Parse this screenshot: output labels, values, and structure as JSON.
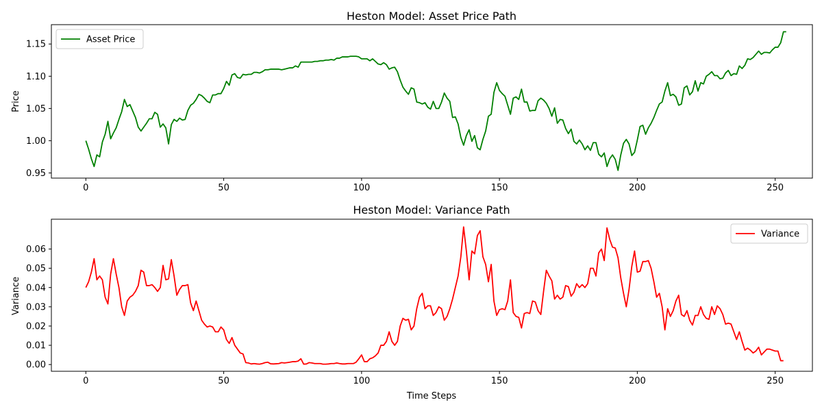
{
  "chart_data": [
    {
      "type": "line",
      "title": "Heston Model: Asset Price Path",
      "xlabel": "",
      "ylabel": "Price",
      "xlim": [
        -12.5,
        263.5
      ],
      "ylim": [
        0.942,
        1.18
      ],
      "xticks": [
        0,
        50,
        100,
        150,
        200,
        250
      ],
      "yticks": [
        0.95,
        1.0,
        1.05,
        1.1,
        1.15
      ],
      "ytick_labels": [
        "0.95",
        "1.00",
        "1.05",
        "1.10",
        "1.15"
      ],
      "legend": "top-left",
      "grid": false,
      "series": [
        {
          "name": "Asset Price",
          "color": "#008000",
          "x_start": 0,
          "x_step": 1,
          "values": [
            1.0,
            0.987,
            0.972,
            0.96,
            0.978,
            0.975,
            0.998,
            1.01,
            1.03,
            1.003,
            1.012,
            1.02,
            1.033,
            1.045,
            1.064,
            1.053,
            1.056,
            1.046,
            1.036,
            1.021,
            1.015,
            1.021,
            1.027,
            1.034,
            1.034,
            1.044,
            1.041,
            1.021,
            1.026,
            1.02,
            0.995,
            1.025,
            1.033,
            1.03,
            1.035,
            1.032,
            1.033,
            1.047,
            1.055,
            1.058,
            1.064,
            1.072,
            1.07,
            1.066,
            1.061,
            1.059,
            1.071,
            1.071,
            1.073,
            1.073,
            1.081,
            1.092,
            1.086,
            1.102,
            1.104,
            1.098,
            1.097,
            1.103,
            1.102,
            1.103,
            1.103,
            1.106,
            1.106,
            1.105,
            1.107,
            1.11,
            1.11,
            1.111,
            1.111,
            1.111,
            1.111,
            1.11,
            1.111,
            1.112,
            1.113,
            1.113,
            1.116,
            1.114,
            1.122,
            1.122,
            1.122,
            1.122,
            1.122,
            1.123,
            1.123,
            1.124,
            1.124,
            1.125,
            1.125,
            1.126,
            1.125,
            1.128,
            1.128,
            1.13,
            1.13,
            1.13,
            1.131,
            1.131,
            1.131,
            1.13,
            1.127,
            1.127,
            1.127,
            1.124,
            1.127,
            1.123,
            1.119,
            1.118,
            1.121,
            1.118,
            1.111,
            1.113,
            1.114,
            1.107,
            1.094,
            1.083,
            1.077,
            1.072,
            1.082,
            1.08,
            1.06,
            1.059,
            1.057,
            1.059,
            1.052,
            1.049,
            1.061,
            1.05,
            1.05,
            1.06,
            1.074,
            1.066,
            1.061,
            1.036,
            1.037,
            1.026,
            1.005,
            0.993,
            1.008,
            1.017,
            0.999,
            1.008,
            0.989,
            0.986,
            1.002,
            1.015,
            1.038,
            1.041,
            1.075,
            1.09,
            1.078,
            1.073,
            1.069,
            1.055,
            1.041,
            1.066,
            1.068,
            1.064,
            1.08,
            1.06,
            1.06,
            1.046,
            1.047,
            1.047,
            1.062,
            1.066,
            1.063,
            1.058,
            1.05,
            1.038,
            1.051,
            1.027,
            1.033,
            1.032,
            1.019,
            1.011,
            1.018,
            0.999,
            0.995,
            1.001,
            0.995,
            0.986,
            0.992,
            0.985,
            0.997,
            0.997,
            0.979,
            0.975,
            0.981,
            0.96,
            0.972,
            0.978,
            0.971,
            0.954,
            0.978,
            0.996,
            1.002,
            0.995,
            0.977,
            0.982,
            1.001,
            1.022,
            1.024,
            1.01,
            1.02,
            1.027,
            1.036,
            1.047,
            1.057,
            1.06,
            1.077,
            1.09,
            1.07,
            1.072,
            1.068,
            1.055,
            1.057,
            1.082,
            1.085,
            1.071,
            1.076,
            1.093,
            1.077,
            1.09,
            1.088,
            1.1,
            1.103,
            1.107,
            1.101,
            1.101,
            1.096,
            1.097,
            1.105,
            1.109,
            1.101,
            1.104,
            1.103,
            1.116,
            1.112,
            1.117,
            1.127,
            1.126,
            1.129,
            1.134,
            1.139,
            1.134,
            1.137,
            1.137,
            1.136,
            1.141,
            1.145,
            1.145,
            1.152,
            1.169,
            1.169
          ]
        }
      ]
    },
    {
      "type": "line",
      "title": "Heston Model: Variance Path",
      "xlabel": "Time Steps",
      "ylabel": "Variance",
      "xlim": [
        -12.5,
        263.5
      ],
      "ylim": [
        -0.0035,
        0.0755
      ],
      "xticks": [
        0,
        50,
        100,
        150,
        200,
        250
      ],
      "yticks": [
        0.0,
        0.01,
        0.02,
        0.03,
        0.04,
        0.05,
        0.06
      ],
      "ytick_labels": [
        "0.00",
        "0.01",
        "0.02",
        "0.03",
        "0.04",
        "0.05",
        "0.06"
      ],
      "legend": "top-right",
      "grid": false,
      "series": [
        {
          "name": "Variance",
          "color": "#ff0000",
          "x_start": 0,
          "x_step": 1,
          "values": [
            0.04,
            0.043,
            0.048,
            0.055,
            0.044,
            0.046,
            0.044,
            0.035,
            0.0315,
            0.047,
            0.055,
            0.047,
            0.04,
            0.03,
            0.0255,
            0.033,
            0.035,
            0.036,
            0.038,
            0.041,
            0.049,
            0.048,
            0.041,
            0.041,
            0.0415,
            0.04,
            0.038,
            0.04,
            0.0515,
            0.044,
            0.0445,
            0.0545,
            0.046,
            0.036,
            0.039,
            0.041,
            0.041,
            0.0415,
            0.032,
            0.028,
            0.033,
            0.028,
            0.023,
            0.021,
            0.0195,
            0.02,
            0.0195,
            0.017,
            0.017,
            0.0195,
            0.018,
            0.013,
            0.011,
            0.014,
            0.01,
            0.008,
            0.006,
            0.0055,
            0.001,
            0.0008,
            0.0003,
            0.0005,
            0.0003,
            0.0002,
            0.0005,
            0.001,
            0.0012,
            0.0004,
            0.0003,
            0.0004,
            0.0005,
            0.001,
            0.0008,
            0.001,
            0.0012,
            0.0015,
            0.0015,
            0.0018,
            0.003,
            0.0002,
            0.0003,
            0.001,
            0.0008,
            0.0005,
            0.0005,
            0.0005,
            0.0002,
            0.0002,
            0.0003,
            0.0005,
            0.0005,
            0.0008,
            0.0005,
            0.0003,
            0.0003,
            0.0005,
            0.0005,
            0.0005,
            0.0012,
            0.003,
            0.005,
            0.0015,
            0.0015,
            0.003,
            0.0035,
            0.0045,
            0.006,
            0.01,
            0.01,
            0.012,
            0.017,
            0.012,
            0.01,
            0.012,
            0.02,
            0.024,
            0.023,
            0.0235,
            0.018,
            0.02,
            0.029,
            0.035,
            0.037,
            0.029,
            0.0305,
            0.0305,
            0.0255,
            0.027,
            0.03,
            0.029,
            0.023,
            0.025,
            0.029,
            0.034,
            0.04,
            0.046,
            0.056,
            0.0715,
            0.059,
            0.044,
            0.059,
            0.0575,
            0.067,
            0.0695,
            0.056,
            0.052,
            0.043,
            0.052,
            0.033,
            0.0255,
            0.0285,
            0.029,
            0.0285,
            0.033,
            0.044,
            0.027,
            0.025,
            0.0245,
            0.019,
            0.0265,
            0.027,
            0.0265,
            0.033,
            0.0325,
            0.028,
            0.026,
            0.038,
            0.049,
            0.046,
            0.0435,
            0.034,
            0.036,
            0.034,
            0.035,
            0.041,
            0.0405,
            0.0355,
            0.0375,
            0.042,
            0.04,
            0.0415,
            0.04,
            0.042,
            0.05,
            0.05,
            0.046,
            0.058,
            0.06,
            0.054,
            0.071,
            0.065,
            0.061,
            0.0605,
            0.0555,
            0.045,
            0.037,
            0.03,
            0.039,
            0.051,
            0.059,
            0.048,
            0.0485,
            0.0535,
            0.0535,
            0.054,
            0.05,
            0.043,
            0.035,
            0.037,
            0.03,
            0.018,
            0.029,
            0.025,
            0.028,
            0.033,
            0.036,
            0.026,
            0.025,
            0.028,
            0.023,
            0.0205,
            0.0255,
            0.0255,
            0.03,
            0.026,
            0.024,
            0.0235,
            0.03,
            0.026,
            0.0305,
            0.029,
            0.026,
            0.021,
            0.0215,
            0.021,
            0.017,
            0.013,
            0.017,
            0.012,
            0.0075,
            0.0085,
            0.0075,
            0.006,
            0.007,
            0.009,
            0.005,
            0.0065,
            0.008,
            0.008,
            0.0075,
            0.007,
            0.007,
            0.002,
            0.002
          ]
        }
      ]
    }
  ]
}
